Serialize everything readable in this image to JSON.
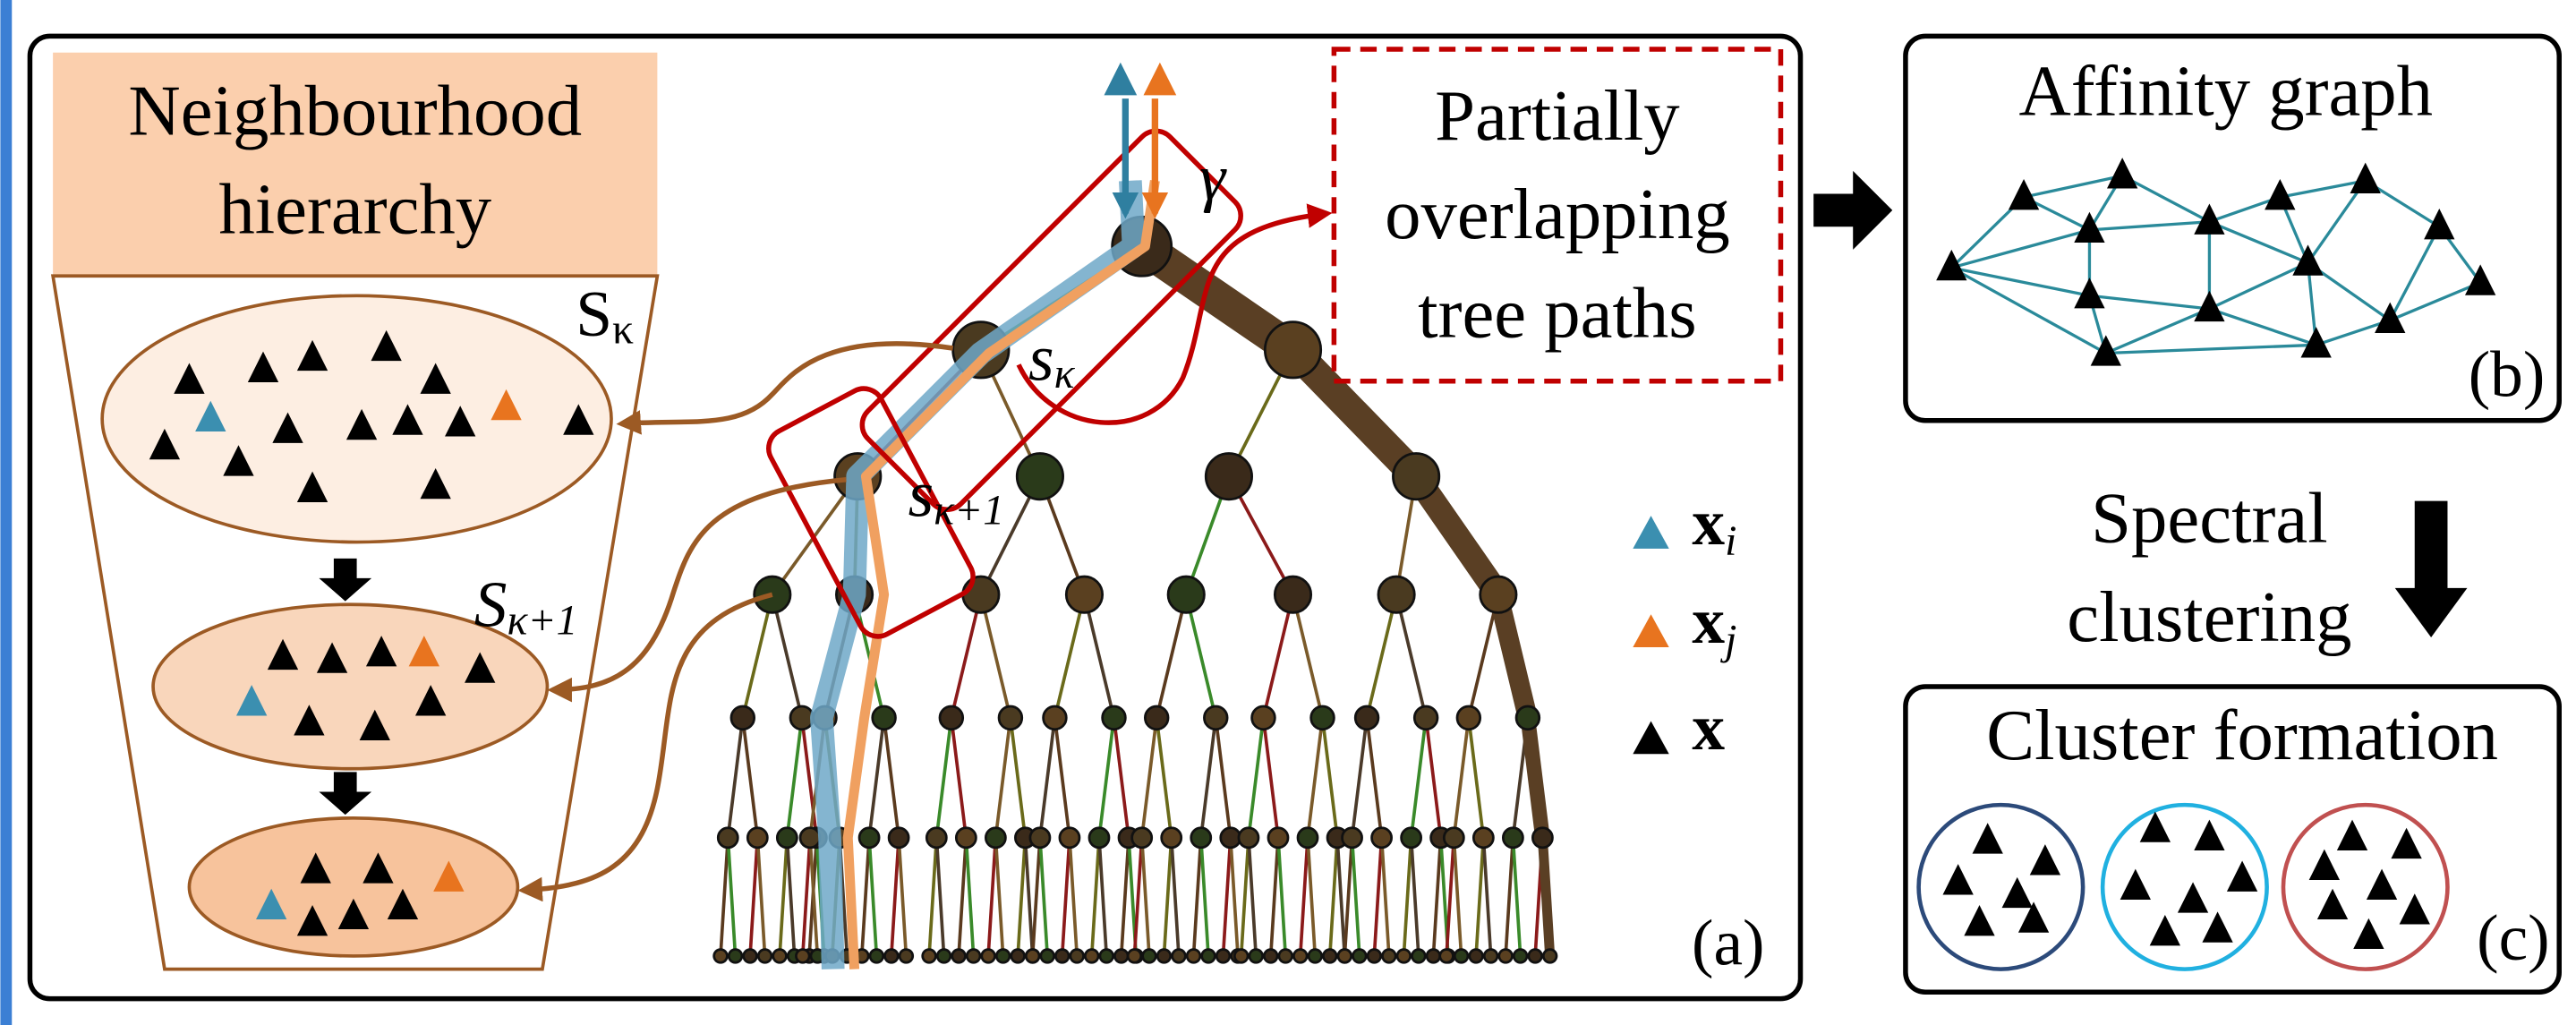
{
  "panel_a": {
    "hierarchy_title": [
      "Neighbourhood",
      "hierarchy"
    ],
    "set_labels": [
      {
        "symbol": "S",
        "subscript": "κ"
      },
      {
        "symbol": "S",
        "subscript": "κ+1"
      }
    ],
    "root_label": "γ",
    "node_labels": [
      {
        "symbol": "s",
        "subscript": "κ"
      },
      {
        "symbol": "s",
        "subscript": "κ+1"
      }
    ],
    "paths_label": [
      "Partially",
      "overlapping",
      "tree paths"
    ],
    "legend": [
      {
        "symbol": "x",
        "subscript": "i"
      },
      {
        "symbol": "x",
        "subscript": "j"
      },
      {
        "symbol": "x"
      }
    ],
    "tag": "(a)"
  },
  "panel_b": {
    "title": "Affinity graph",
    "tag": "(b)"
  },
  "arrow_label": [
    "Spectral",
    "clustering"
  ],
  "panel_c": {
    "title": "Cluster formation",
    "tag": "(c)"
  }
}
